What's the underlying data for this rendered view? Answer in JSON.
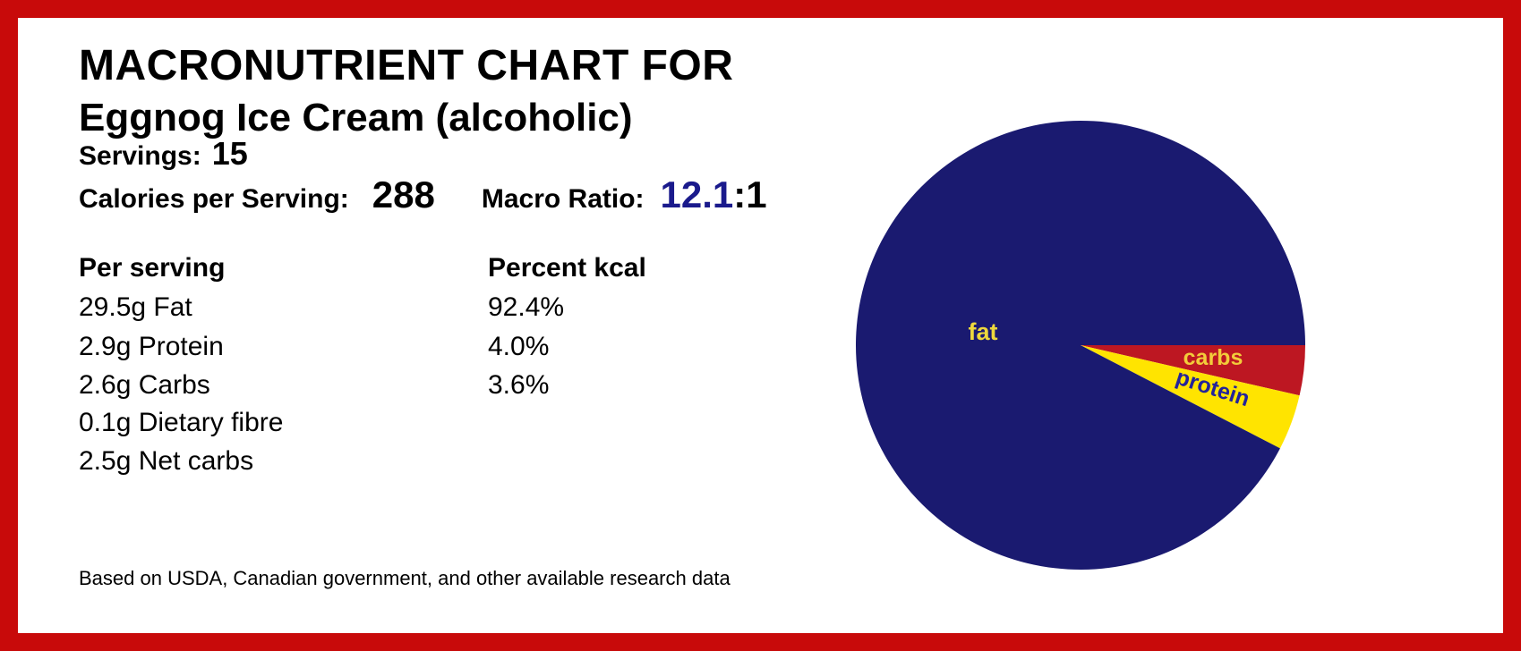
{
  "frame_color": "#C80A0A",
  "header": {
    "title": "MACRONUTRIENT CHART FOR",
    "subtitle": "Eggnog Ice Cream (alcoholic)",
    "servings_label": "Servings:",
    "servings_value": "15",
    "calories_label": "Calories per Serving:",
    "calories_value": "288",
    "macro_ratio_label": "Macro Ratio:",
    "macro_ratio_value": "12.1",
    "macro_ratio_suffix": ":1",
    "macro_ratio_value_color": "#1A1A8C"
  },
  "nutrition": {
    "per_serving_header": "Per serving",
    "percent_kcal_header": "Percent kcal",
    "rows": [
      {
        "amount": "29.5g Fat",
        "percent": "92.4%"
      },
      {
        "amount": "2.9g Protein",
        "percent": "4.0%"
      },
      {
        "amount": "2.6g Carbs",
        "percent": "3.6%"
      },
      {
        "amount": "0.1g Dietary fibre",
        "percent": ""
      },
      {
        "amount": "2.5g Net carbs",
        "percent": ""
      }
    ]
  },
  "footer": {
    "text": "Based on USDA, Canadian government, and other available research data"
  },
  "chart_data": {
    "type": "pie",
    "units": "percent of kcal",
    "start_angle_deg": 0,
    "direction": "clockwise",
    "legend": "none",
    "labels_inside": true,
    "slices": [
      {
        "label": "carbs",
        "value": 3.6,
        "color": "#BD1722",
        "label_color": "#F2CC3A"
      },
      {
        "label": "protein",
        "value": 4.0,
        "color": "#FFE400",
        "label_color": "#23239B"
      },
      {
        "label": "fat",
        "value": 92.4,
        "color": "#1A1A70",
        "label_color": "#EDD83D"
      }
    ]
  }
}
